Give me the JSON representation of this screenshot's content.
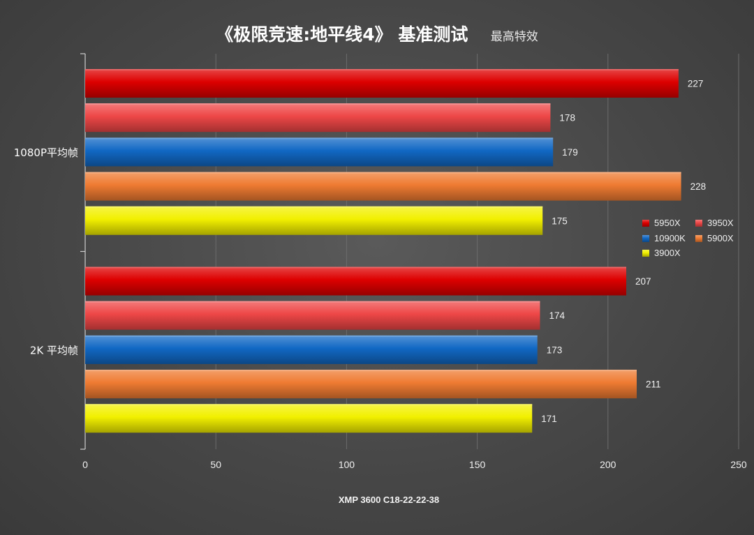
{
  "chart_data": {
    "type": "bar",
    "orientation": "horizontal",
    "title": "《极限竞速:地平线4》 基准测试",
    "subtitle": "最高特效",
    "xlabel": "XMP 3600 C18-22-22-38",
    "ylabel": "",
    "xlim": [
      0,
      250
    ],
    "xticks": [
      0,
      50,
      100,
      150,
      200,
      250
    ],
    "grid": true,
    "legend_position": "right",
    "categories": [
      "1080P平均帧",
      "2K 平均帧"
    ],
    "series": [
      {
        "name": "5950X",
        "color": "#dd0000",
        "values": [
          227,
          207
        ]
      },
      {
        "name": "3950X",
        "color": "#ee4747",
        "values": [
          178,
          174
        ]
      },
      {
        "name": "10900K",
        "color": "#1168c4",
        "values": [
          179,
          173
        ]
      },
      {
        "name": "5900X",
        "color": "#ef7b32",
        "values": [
          228,
          211
        ]
      },
      {
        "name": "3900X",
        "color": "#f2f000",
        "values": [
          175,
          171
        ]
      }
    ]
  }
}
